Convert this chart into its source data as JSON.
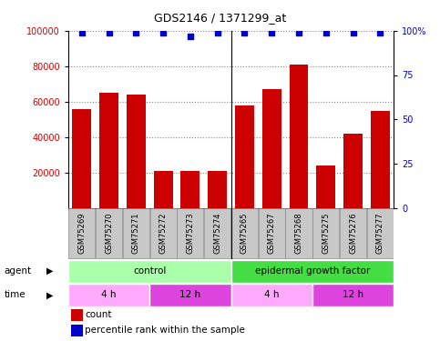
{
  "title": "GDS2146 / 1371299_at",
  "samples": [
    "GSM75269",
    "GSM75270",
    "GSM75271",
    "GSM75272",
    "GSM75273",
    "GSM75274",
    "GSM75265",
    "GSM75267",
    "GSM75268",
    "GSM75275",
    "GSM75276",
    "GSM75277"
  ],
  "counts": [
    56000,
    65000,
    64000,
    21000,
    21000,
    21000,
    58000,
    67000,
    81000,
    24000,
    42000,
    55000
  ],
  "percentile": [
    99,
    99,
    99,
    99,
    97,
    99,
    99,
    99,
    99,
    99,
    99,
    99
  ],
  "ylim_left": [
    0,
    100000
  ],
  "ylim_right": [
    0,
    100
  ],
  "yticks_left": [
    20000,
    40000,
    60000,
    80000,
    100000
  ],
  "yticks_left_labels": [
    "20000",
    "40000",
    "60000",
    "80000",
    "100000"
  ],
  "yticks_right": [
    0,
    25,
    50,
    75,
    100
  ],
  "yticks_right_labels": [
    "0",
    "25",
    "50",
    "75",
    "100%"
  ],
  "bar_color": "#cc0000",
  "dot_color": "#0000cc",
  "agent_groups": [
    {
      "label": "control",
      "start": 0,
      "end": 6,
      "color": "#aaffaa"
    },
    {
      "label": "epidermal growth factor",
      "start": 6,
      "end": 12,
      "color": "#44dd44"
    }
  ],
  "time_groups": [
    {
      "label": "4 h",
      "start": 0,
      "end": 3,
      "color": "#ffaaff"
    },
    {
      "label": "12 h",
      "start": 3,
      "end": 6,
      "color": "#dd44dd"
    },
    {
      "label": "4 h",
      "start": 6,
      "end": 9,
      "color": "#ffaaff"
    },
    {
      "label": "12 h",
      "start": 9,
      "end": 12,
      "color": "#dd44dd"
    }
  ],
  "legend_count_label": "count",
  "legend_pct_label": "percentile rank within the sample",
  "agent_label": "agent",
  "time_label": "time",
  "xtick_bg": "#c8c8c8",
  "xtick_border": "#888888"
}
